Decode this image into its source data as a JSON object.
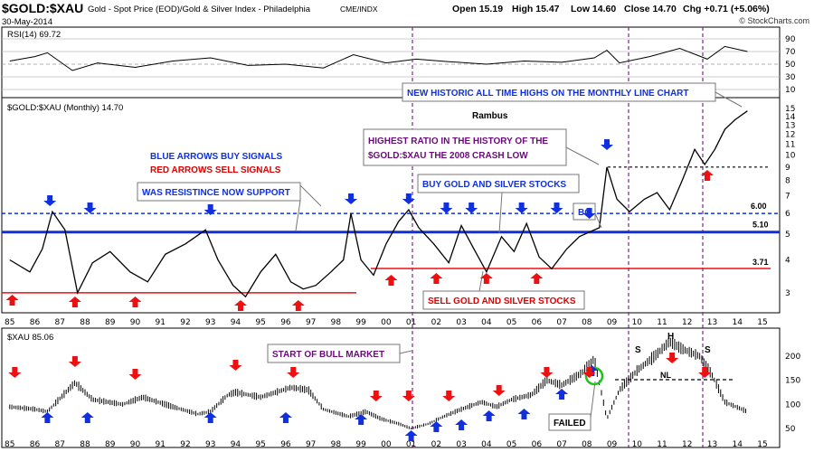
{
  "header": {
    "ticker": "$GOLD:$XAU",
    "description": "Gold - Spot Price (EOD)/Gold & Silver Index - Philadelphia",
    "exchange": "CME/INDX",
    "date": "30-May-2014",
    "open": "Open 15.19",
    "high": "High 15.47",
    "low": "Low 14.60",
    "close": "Close 14.70",
    "change": "Chg +0.71 (+5.06%)",
    "credit": "© StockCharts.com"
  },
  "rsi": {
    "label": "RSI(14) 69.72",
    "ticks": [
      "90",
      "70",
      "50",
      "30",
      "10"
    ]
  },
  "main": {
    "label": "$GOLD:$XAU (Monthly) 14.70",
    "author": "Rambus",
    "level_labels": {
      "l600": "6.00",
      "l510": "5.10",
      "l371": "3.71"
    },
    "yticks": [
      "15",
      "14",
      "13",
      "12",
      "11",
      "10",
      "9",
      "8",
      "7",
      "6",
      "5",
      "4",
      "3"
    ],
    "xticks": [
      "85",
      "86",
      "87",
      "88",
      "89",
      "90",
      "91",
      "92",
      "93",
      "94",
      "95",
      "96",
      "97",
      "98",
      "99",
      "00",
      "01",
      "02",
      "03",
      "04",
      "05",
      "06",
      "07",
      "08",
      "09",
      "10",
      "11",
      "12",
      "13",
      "14",
      "15"
    ],
    "annotations": {
      "blue_arrows": "BLUE ARROWS BUY SIGNALS",
      "red_arrows": "RED ARROWS SELL SIGNALS",
      "resistance": "WAS RESISTINCE NOW SUPPORT",
      "buy_stocks": "BUY GOLD AND SILVER STOCKS",
      "highest_1": "HIGHEST RATIO IN THE HISTORY OF THE",
      "highest_2": "$GOLD:$XAU THE 2008 CRASH LOW",
      "new_highs": "NEW HISTORIC ALL TIME HIGHS ON THE MONTHLY LINE CHART",
      "sell_stocks": "SELL GOLD AND SILVER STOCKS",
      "bo": "BO"
    }
  },
  "xau": {
    "label": "$XAU 85.06",
    "yticks": [
      "200",
      "150",
      "100",
      "50"
    ],
    "annotations": {
      "bull_market": "START OF BULL MARKET",
      "failed": "FAILED",
      "s1": "S",
      "h": "H",
      "s2": "S",
      "nl": "NL"
    }
  },
  "colors": {
    "buy": "#1030e0",
    "sell": "#ee1010",
    "support_line": "#1030e0",
    "sell_line": "#ee1010",
    "vline": "#7a2a8a",
    "ann_purple": "#6a0a7a",
    "ann_red": "#dd0000",
    "ann_blue": "#1030e0"
  },
  "chart_data": [
    {
      "type": "line",
      "title": "RSI(14) 69.72",
      "ylim": [
        0,
        100
      ],
      "yticks": [
        10,
        30,
        50,
        70,
        90
      ],
      "x": [
        1985,
        1986,
        1986.5,
        1987.5,
        1988.5,
        1990,
        1991.5,
        1993,
        1994.5,
        1996,
        1997.5,
        1998.7,
        2000,
        2001.2,
        2002.5,
        2004,
        2005.5,
        2007,
        2008.3,
        2008.8,
        2009.3,
        2010.5,
        2011.7,
        2012.8,
        2013.5,
        2014.4
      ],
      "values": [
        55,
        62,
        68,
        40,
        52,
        45,
        55,
        60,
        48,
        50,
        44,
        65,
        52,
        58,
        54,
        50,
        55,
        53,
        60,
        72,
        52,
        62,
        75,
        58,
        78,
        70
      ]
    },
    {
      "type": "line",
      "title": "$GOLD:$XAU (Monthly) 14.70",
      "scale": "log",
      "ylim": [
        2.6,
        16
      ],
      "reference_lines": [
        6.0,
        5.1,
        3.71,
        3.0,
        9.0
      ],
      "x": [
        1985,
        1985.8,
        1986.3,
        1986.7,
        1987.2,
        1987.7,
        1988.3,
        1989,
        1989.8,
        1990.5,
        1991.2,
        1992,
        1992.8,
        1993.3,
        1993.9,
        1994.4,
        1995,
        1995.6,
        1996.2,
        1996.7,
        1997.2,
        1997.8,
        1998.3,
        1998.6,
        1999,
        1999.5,
        2000,
        2000.5,
        2000.9,
        2001.3,
        2001.9,
        2002.5,
        2003,
        2003.5,
        2004,
        2004.6,
        2005.1,
        2005.6,
        2006.1,
        2006.6,
        2007.2,
        2007.7,
        2008.1,
        2008.5,
        2008.8,
        2009.2,
        2009.7,
        2010.3,
        2010.8,
        2011.3,
        2011.8,
        2012.3,
        2012.7,
        2013.1,
        2013.5,
        2013.9,
        2014.4
      ],
      "values": [
        4.0,
        3.6,
        4.4,
        6.1,
        5.2,
        3.0,
        3.9,
        4.3,
        3.6,
        3.3,
        4.2,
        4.6,
        5.2,
        4.0,
        3.2,
        2.9,
        3.6,
        4.2,
        3.3,
        3.1,
        3.2,
        3.6,
        4.0,
        6.0,
        4.0,
        3.5,
        4.6,
        5.6,
        6.2,
        5.3,
        4.6,
        3.9,
        5.4,
        4.4,
        3.6,
        4.9,
        4.3,
        5.5,
        4.1,
        3.7,
        4.4,
        4.9,
        5.1,
        5.3,
        9.0,
        6.8,
        6.1,
        6.8,
        7.2,
        6.2,
        8.0,
        10.5,
        9.2,
        10.5,
        12.5,
        13.6,
        14.7
      ]
    },
    {
      "type": "line",
      "title": "$XAU 85.06",
      "ylim": [
        35,
        245
      ],
      "yticks": [
        50,
        100,
        150,
        200
      ],
      "x": [
        1985,
        1986,
        1986.5,
        1987.6,
        1988.3,
        1989.5,
        1990.3,
        1991.5,
        1992.5,
        1993,
        1993.7,
        1994,
        1995,
        1996.2,
        1996.9,
        1997.5,
        1998.5,
        1999.2,
        1999.8,
        2000.5,
        2001,
        2001.7,
        2002.3,
        2003,
        2003.8,
        2004.4,
        2005,
        2005.8,
        2006.4,
        2007,
        2007.8,
        2008.3,
        2008.8,
        2009.3,
        2010,
        2010.7,
        2011.3,
        2011.8,
        2012.5,
        2013,
        2013.5,
        2014.4
      ],
      "values": [
        95,
        90,
        85,
        145,
        110,
        100,
        115,
        95,
        80,
        85,
        120,
        125,
        115,
        135,
        130,
        90,
        75,
        85,
        70,
        60,
        50,
        60,
        75,
        90,
        105,
        95,
        110,
        120,
        150,
        140,
        165,
        195,
        70,
        130,
        170,
        200,
        230,
        215,
        200,
        160,
        105,
        85
      ]
    }
  ]
}
